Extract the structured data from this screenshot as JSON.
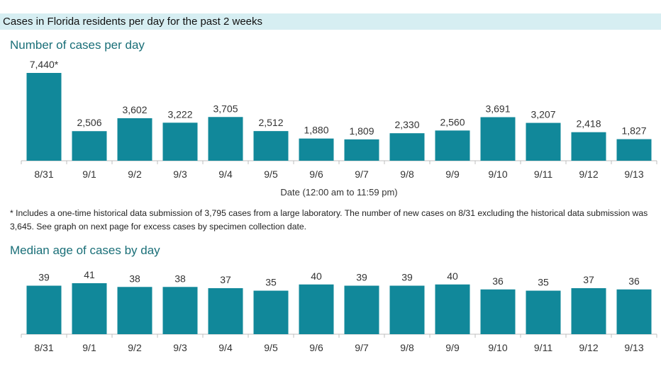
{
  "header": {
    "title": "Cases in Florida residents per day for the past 2 weeks"
  },
  "footnote": "* Includes a one-time historical data submission of 3,795 cases from a large laboratory. The number of new cases on 8/31 excluding the historical data submission was 3,645. See graph on next page for excess cases by specimen collection date.",
  "colors": {
    "bar": "#11889a",
    "title": "#1a6f78",
    "header_bg": "#d6eef2"
  },
  "chart_data": [
    {
      "type": "bar",
      "title": "Number of cases per day",
      "xlabel": "Date (12:00 am to 11:59 pm)",
      "ylabel": "",
      "categories": [
        "8/31",
        "9/1",
        "9/2",
        "9/3",
        "9/4",
        "9/5",
        "9/6",
        "9/7",
        "9/8",
        "9/9",
        "9/10",
        "9/11",
        "9/12",
        "9/13"
      ],
      "values": [
        7440,
        2506,
        3602,
        3222,
        3705,
        2512,
        1880,
        1809,
        2330,
        2560,
        3691,
        3207,
        2418,
        1827
      ],
      "labels": [
        "7,440*",
        "2,506",
        "3,602",
        "3,222",
        "3,705",
        "2,512",
        "1,880",
        "1,809",
        "2,330",
        "2,560",
        "3,691",
        "3,207",
        "2,418",
        "1,827"
      ],
      "ylim": [
        0,
        7440
      ],
      "grid": false,
      "legend": "none"
    },
    {
      "type": "bar",
      "title": "Median age of cases by day",
      "xlabel": "",
      "ylabel": "",
      "categories": [
        "8/31",
        "9/1",
        "9/2",
        "9/3",
        "9/4",
        "9/5",
        "9/6",
        "9/7",
        "9/8",
        "9/9",
        "9/10",
        "9/11",
        "9/12",
        "9/13"
      ],
      "values": [
        39,
        41,
        38,
        38,
        37,
        35,
        40,
        39,
        39,
        40,
        36,
        35,
        37,
        36
      ],
      "labels": [
        "39",
        "41",
        "38",
        "38",
        "37",
        "35",
        "40",
        "39",
        "39",
        "40",
        "36",
        "35",
        "37",
        "36"
      ],
      "ylim": [
        0,
        41
      ],
      "grid": false,
      "legend": "none"
    }
  ]
}
